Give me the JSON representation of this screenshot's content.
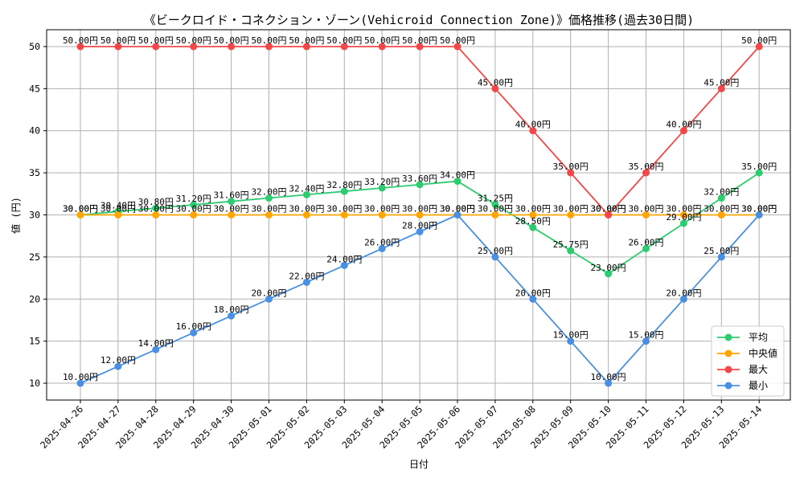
{
  "chart_data": {
    "type": "line",
    "title": "《ビークロイド・コネクション・ゾーン(Vehicroid Connection Zone)》価格推移(過去30日間)",
    "xlabel": "日付",
    "ylabel": "値 (円)",
    "ylim": [
      8,
      52
    ],
    "yticks": [
      10,
      15,
      20,
      25,
      30,
      35,
      40,
      45,
      50
    ],
    "grid": true,
    "legend_position": "lower-right",
    "label_suffix": "円",
    "categories": [
      "2025-04-26",
      "2025-04-27",
      "2025-04-28",
      "2025-04-29",
      "2025-04-30",
      "2025-05-01",
      "2025-05-02",
      "2025-05-03",
      "2025-05-04",
      "2025-05-05",
      "2025-05-06",
      "2025-05-07",
      "2025-05-08",
      "2025-05-09",
      "2025-05-10",
      "2025-05-11",
      "2025-05-12",
      "2025-05-13",
      "2025-05-14"
    ],
    "series": [
      {
        "name": "平均",
        "color": "#2ecc71",
        "values": [
          30.0,
          30.4,
          30.8,
          31.2,
          31.6,
          32.0,
          32.4,
          32.8,
          33.2,
          33.6,
          34.0,
          31.25,
          28.5,
          25.75,
          23.0,
          26.0,
          29.0,
          32.0,
          35.0
        ]
      },
      {
        "name": "中央値",
        "color": "#ffa500",
        "values": [
          30,
          30,
          30,
          30,
          30,
          30,
          30,
          30,
          30,
          30,
          30,
          30,
          30,
          30,
          30,
          30,
          30,
          30,
          30
        ]
      },
      {
        "name": "最大",
        "color": "#f44747",
        "values": [
          50,
          50,
          50,
          50,
          50,
          50,
          50,
          50,
          50,
          50,
          50,
          45,
          40,
          35,
          30,
          35,
          40,
          45,
          50
        ]
      },
      {
        "name": "最小",
        "color": "#4a90e2",
        "values": [
          10,
          12,
          14,
          16,
          18,
          20,
          22,
          24,
          26,
          28,
          30,
          25,
          20,
          15,
          10,
          15,
          20,
          25,
          30
        ]
      }
    ]
  }
}
